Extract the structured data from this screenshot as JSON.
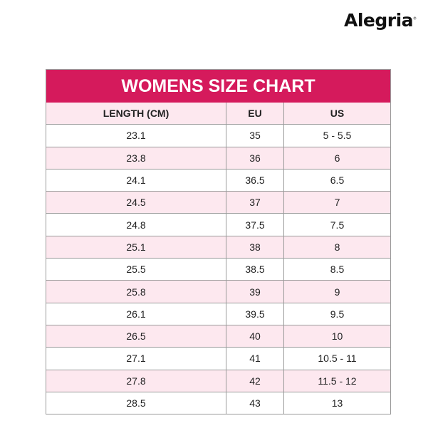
{
  "brand": {
    "logo_text": "Alegria"
  },
  "chart": {
    "title": "WOMENS SIZE CHART",
    "columns": [
      "LENGTH (CM)",
      "EU",
      "US"
    ],
    "rows": [
      [
        "23.1",
        "35",
        "5 - 5.5"
      ],
      [
        "23.8",
        "36",
        "6"
      ],
      [
        "24.1",
        "36.5",
        "6.5"
      ],
      [
        "24.5",
        "37",
        "7"
      ],
      [
        "24.8",
        "37.5",
        "7.5"
      ],
      [
        "25.1",
        "38",
        "8"
      ],
      [
        "25.5",
        "38.5",
        "8.5"
      ],
      [
        "25.8",
        "39",
        "9"
      ],
      [
        "26.1",
        "39.5",
        "9.5"
      ],
      [
        "26.5",
        "40",
        "10"
      ],
      [
        "27.1",
        "41",
        "10.5 - 11"
      ],
      [
        "27.8",
        "42",
        "11.5 - 12"
      ],
      [
        "28.5",
        "43",
        "13"
      ]
    ],
    "colors": {
      "header": "#d51a5c",
      "alt_row": "#fde8ef"
    }
  }
}
